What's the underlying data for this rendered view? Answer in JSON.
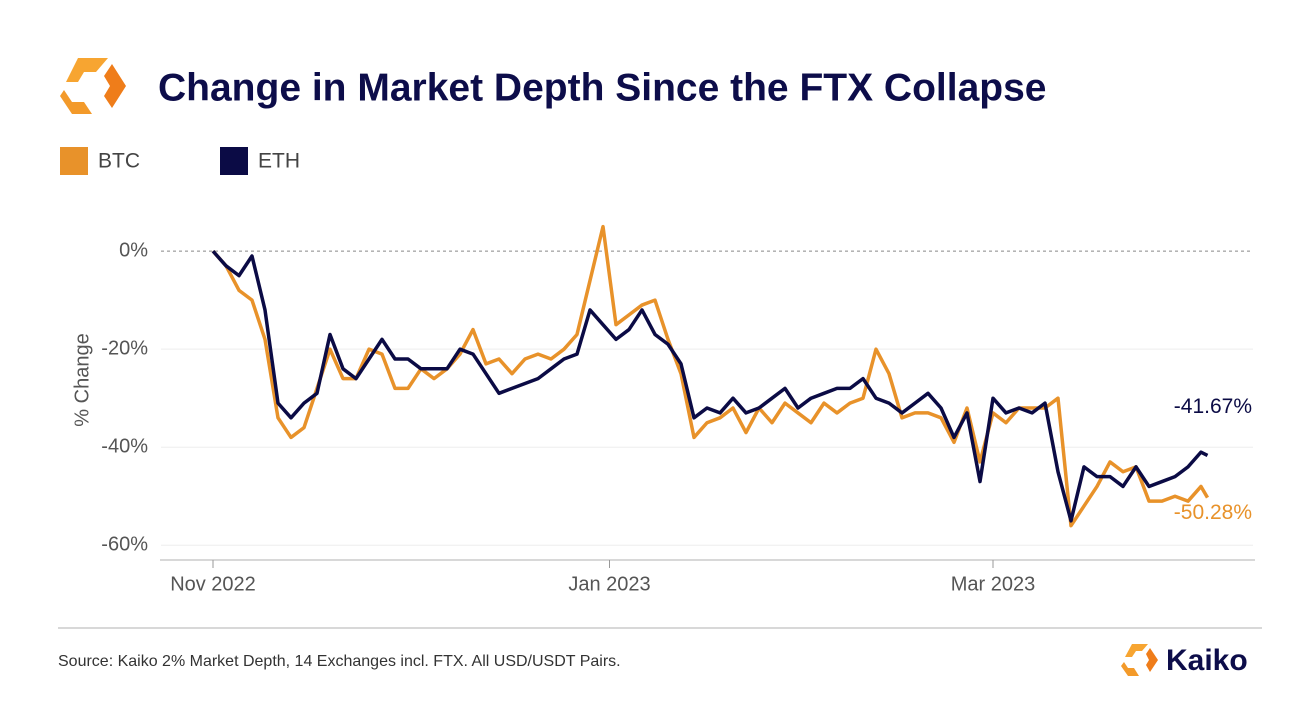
{
  "chart_data": {
    "type": "line",
    "title": "Change in Market Depth Since the FTX Collapse",
    "y_label": "% Change",
    "source": "Source: Kaiko 2% Market Depth, 14 Exchanges incl. FTX. All USD/USDT Pairs.",
    "logo_text": "Kaiko",
    "x": [
      0,
      2,
      4,
      6,
      8,
      10,
      12,
      14,
      16,
      18,
      20,
      22,
      24,
      26,
      28,
      30,
      32,
      34,
      36,
      38,
      40,
      42,
      44,
      46,
      48,
      50,
      52,
      54,
      56,
      58,
      60,
      62,
      64,
      66,
      68,
      70,
      72,
      74,
      76,
      78,
      80,
      82,
      84,
      86,
      88,
      90,
      92,
      94,
      96,
      98,
      100,
      102,
      104,
      106,
      108,
      110,
      112,
      114,
      116,
      118,
      120,
      122,
      124,
      126,
      128,
      130,
      132,
      134,
      136,
      138,
      140,
      142,
      144,
      146,
      148,
      150,
      152,
      153
    ],
    "xlim": [
      -8,
      160
    ],
    "xticks": [
      {
        "value": 0,
        "label": "Nov 2022"
      },
      {
        "value": 61,
        "label": "Jan 2023"
      },
      {
        "value": 120,
        "label": "Mar 2023"
      }
    ],
    "ylim": [
      -63,
      9
    ],
    "yticks": [
      {
        "value": 0,
        "label": "0%"
      },
      {
        "value": -20,
        "label": "-20%"
      },
      {
        "value": -40,
        "label": "-40%"
      },
      {
        "value": -60,
        "label": "-60%"
      }
    ],
    "grid": true,
    "series": [
      {
        "name": "BTC",
        "color": "#e8922a",
        "values": [
          0,
          -3,
          -8,
          -10,
          -18,
          -34,
          -38,
          -36,
          -28,
          -20,
          -26,
          -26,
          -20,
          -21,
          -28,
          -28,
          -24,
          -26,
          -24,
          -21,
          -16,
          -23,
          -22,
          -25,
          -22,
          -21,
          -22,
          -20,
          -17,
          -6,
          5,
          -15,
          -13,
          -11,
          -10,
          -18,
          -25,
          -38,
          -35,
          -34,
          -32,
          -37,
          -32,
          -35,
          -31,
          -33,
          -35,
          -31,
          -33,
          -31,
          -30,
          -20,
          -25,
          -34,
          -33,
          -33,
          -34,
          -39,
          -32,
          -43,
          -33,
          -35,
          -32,
          -32,
          -32,
          -30,
          -56,
          -52,
          -48,
          -43,
          -45,
          -44,
          -51,
          -51,
          -50,
          -51,
          -48,
          -50.28
        ],
        "value_labels": [
          null,
          null,
          null,
          null,
          null,
          null,
          null,
          null,
          null,
          null,
          null,
          null,
          null,
          null,
          null,
          null,
          null,
          null,
          null,
          null,
          null,
          null,
          null,
          null,
          null,
          null,
          null,
          null,
          null,
          null,
          null,
          null,
          null,
          null,
          null,
          null,
          null,
          null,
          null,
          null,
          null,
          null,
          null,
          null,
          null,
          null,
          null,
          null,
          null,
          null,
          null,
          null,
          null,
          null,
          null,
          null,
          null,
          null,
          null,
          null,
          null,
          null,
          null,
          null,
          null,
          null,
          null,
          null,
          null,
          null,
          null,
          null,
          null,
          null,
          null,
          null,
          null,
          "-50.28%"
        ]
      },
      {
        "name": "ETH",
        "color": "#0b0b45",
        "values": [
          0,
          -3,
          -5,
          -1,
          -12,
          -31,
          -34,
          -31,
          -29,
          -17,
          -24,
          -26,
          -22,
          -18,
          -22,
          -22,
          -24,
          -24,
          -24,
          -20,
          -21,
          -25,
          -29,
          -28,
          -27,
          -26,
          -24,
          -22,
          -21,
          -12,
          -15,
          -18,
          -16,
          -12,
          -17,
          -19,
          -23,
          -34,
          -32,
          -33,
          -30,
          -33,
          -32,
          -30,
          -28,
          -32,
          -30,
          -29,
          -28,
          -28,
          -26,
          -30,
          -31,
          -33,
          -31,
          -29,
          -32,
          -38,
          -33,
          -47,
          -30,
          -33,
          -32,
          -33,
          -31,
          -45,
          -55,
          -44,
          -46,
          -46,
          -48,
          -44,
          -48,
          -47,
          -46,
          -44,
          -41,
          -41.67
        ],
        "value_labels": [
          null,
          null,
          null,
          null,
          null,
          null,
          null,
          null,
          null,
          null,
          null,
          null,
          null,
          null,
          null,
          null,
          null,
          null,
          null,
          null,
          null,
          null,
          null,
          null,
          null,
          null,
          null,
          null,
          null,
          null,
          null,
          null,
          null,
          null,
          null,
          null,
          null,
          null,
          null,
          null,
          null,
          null,
          null,
          null,
          null,
          null,
          null,
          null,
          null,
          null,
          null,
          null,
          null,
          null,
          null,
          null,
          null,
          null,
          null,
          null,
          null,
          null,
          null,
          null,
          null,
          null,
          null,
          null,
          null,
          null,
          null,
          null,
          null,
          null,
          null,
          null,
          null,
          "-41.67%"
        ]
      }
    ]
  }
}
